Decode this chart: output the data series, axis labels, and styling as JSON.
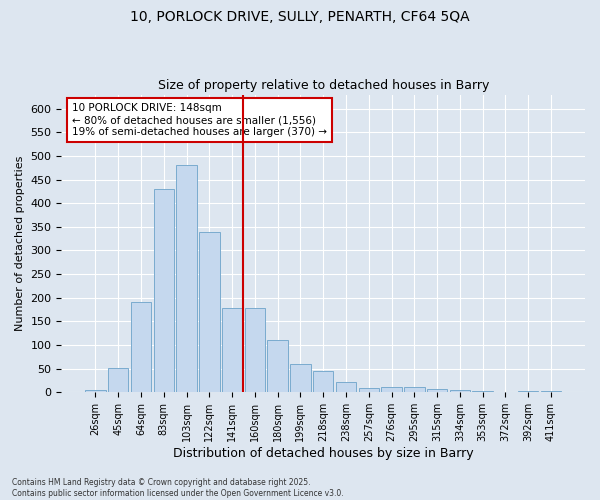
{
  "title1": "10, PORLOCK DRIVE, SULLY, PENARTH, CF64 5QA",
  "title2": "Size of property relative to detached houses in Barry",
  "xlabel": "Distribution of detached houses by size in Barry",
  "ylabel": "Number of detached properties",
  "categories": [
    "26sqm",
    "45sqm",
    "64sqm",
    "83sqm",
    "103sqm",
    "122sqm",
    "141sqm",
    "160sqm",
    "180sqm",
    "199sqm",
    "218sqm",
    "238sqm",
    "257sqm",
    "276sqm",
    "295sqm",
    "315sqm",
    "334sqm",
    "353sqm",
    "372sqm",
    "392sqm",
    "411sqm"
  ],
  "values": [
    5,
    52,
    190,
    430,
    481,
    340,
    178,
    178,
    110,
    60,
    45,
    22,
    8,
    10,
    10,
    6,
    4,
    3,
    1,
    2,
    3
  ],
  "bar_color": "#c5d8ee",
  "bar_edge_color": "#7aabcf",
  "vline_color": "#cc0000",
  "annotation_text": "10 PORLOCK DRIVE: 148sqm\n← 80% of detached houses are smaller (1,556)\n19% of semi-detached houses are larger (370) →",
  "annotation_box_color": "#ffffff",
  "annotation_box_edge": "#cc0000",
  "bg_color": "#dde6f0",
  "plot_bg_color": "#dde6f0",
  "grid_color": "#ffffff",
  "footer": "Contains HM Land Registry data © Crown copyright and database right 2025.\nContains public sector information licensed under the Open Government Licence v3.0.",
  "ylim": [
    0,
    630
  ],
  "yticks": [
    0,
    50,
    100,
    150,
    200,
    250,
    300,
    350,
    400,
    450,
    500,
    550,
    600
  ]
}
